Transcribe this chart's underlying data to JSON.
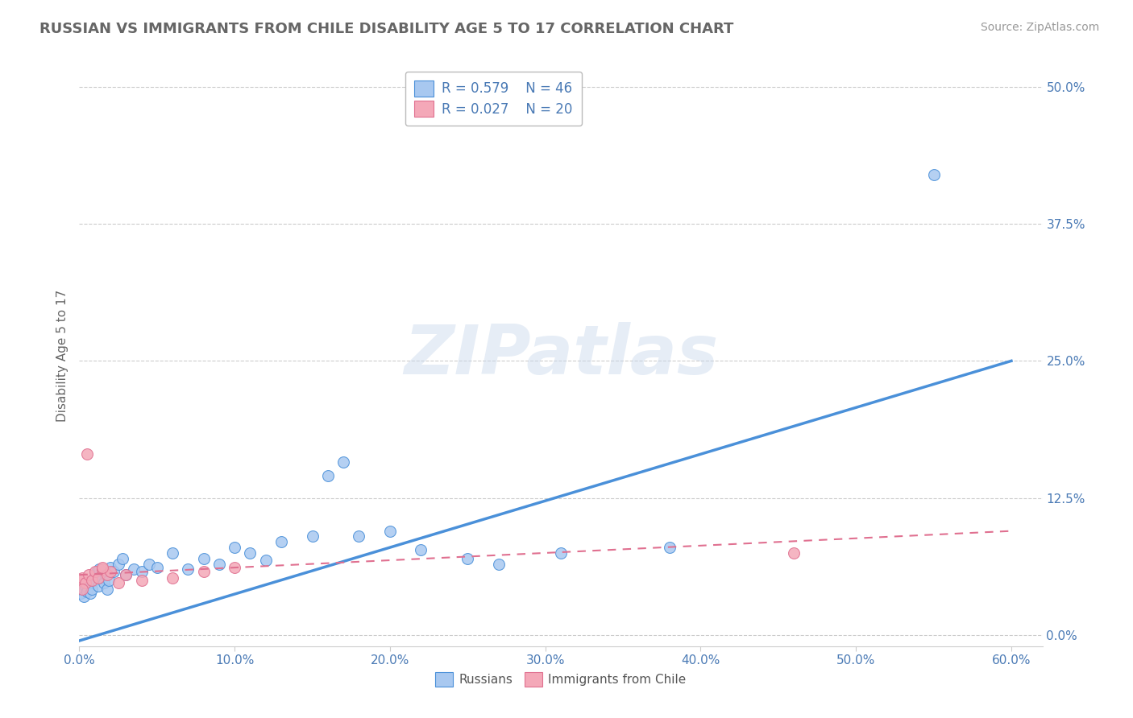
{
  "title": "RUSSIAN VS IMMIGRANTS FROM CHILE DISABILITY AGE 5 TO 17 CORRELATION CHART",
  "source": "Source: ZipAtlas.com",
  "xlabel_ticks": [
    "0.0%",
    "10.0%",
    "20.0%",
    "30.0%",
    "40.0%",
    "50.0%",
    "60.0%"
  ],
  "xlabel_vals": [
    0.0,
    0.1,
    0.2,
    0.3,
    0.4,
    0.5,
    0.6
  ],
  "ylabel_label": "Disability Age 5 to 17",
  "ylabel_ticks": [
    "0.0%",
    "12.5%",
    "25.0%",
    "37.5%",
    "50.0%"
  ],
  "ylabel_vals": [
    0.0,
    0.125,
    0.25,
    0.375,
    0.5
  ],
  "xlim": [
    0.0,
    0.62
  ],
  "ylim": [
    -0.01,
    0.52
  ],
  "R_russian": 0.579,
  "N_russian": 46,
  "R_chile": 0.027,
  "N_chile": 20,
  "legend_label_russian": "Russians",
  "legend_label_chile": "Immigrants from Chile",
  "color_russian": "#a8c8f0",
  "color_russian_line": "#4a90d9",
  "color_chile": "#f4a8b8",
  "color_chile_line": "#e07090",
  "color_text_blue": "#4a7ab5",
  "color_title": "#666666",
  "color_source": "#999999",
  "color_grid": "#cccccc",
  "watermark_text": "ZIPatlas",
  "russian_x": [
    0.001,
    0.002,
    0.003,
    0.004,
    0.005,
    0.006,
    0.007,
    0.008,
    0.009,
    0.01,
    0.011,
    0.012,
    0.013,
    0.015,
    0.016,
    0.017,
    0.018,
    0.019,
    0.02,
    0.022,
    0.025,
    0.028,
    0.03,
    0.035,
    0.04,
    0.045,
    0.05,
    0.06,
    0.07,
    0.08,
    0.09,
    0.1,
    0.11,
    0.12,
    0.13,
    0.15,
    0.16,
    0.17,
    0.18,
    0.2,
    0.22,
    0.25,
    0.27,
    0.31,
    0.55,
    0.38
  ],
  "russian_y": [
    0.038,
    0.042,
    0.035,
    0.045,
    0.04,
    0.048,
    0.038,
    0.042,
    0.05,
    0.055,
    0.058,
    0.045,
    0.06,
    0.052,
    0.048,
    0.055,
    0.042,
    0.05,
    0.062,
    0.058,
    0.065,
    0.07,
    0.055,
    0.06,
    0.058,
    0.065,
    0.062,
    0.075,
    0.06,
    0.07,
    0.065,
    0.08,
    0.075,
    0.068,
    0.085,
    0.09,
    0.145,
    0.158,
    0.09,
    0.095,
    0.078,
    0.07,
    0.065,
    0.075,
    0.42,
    0.08
  ],
  "russian_y_outlier_x": [
    0.56
  ],
  "russian_y_outlier_y": [
    0.42
  ],
  "chile_x": [
    0.001,
    0.002,
    0.004,
    0.006,
    0.008,
    0.01,
    0.012,
    0.015,
    0.018,
    0.02,
    0.025,
    0.03,
    0.04,
    0.06,
    0.08,
    0.1,
    0.46,
    0.002,
    0.005,
    0.015
  ],
  "chile_y": [
    0.05,
    0.052,
    0.048,
    0.055,
    0.05,
    0.058,
    0.052,
    0.06,
    0.055,
    0.058,
    0.048,
    0.055,
    0.05,
    0.052,
    0.058,
    0.062,
    0.075,
    0.042,
    0.165,
    0.062
  ],
  "russian_trend_x": [
    0.0,
    0.6
  ],
  "russian_trend_y": [
    -0.005,
    0.25
  ],
  "chile_trend_x": [
    0.0,
    0.6
  ],
  "chile_trend_y": [
    0.055,
    0.095
  ]
}
